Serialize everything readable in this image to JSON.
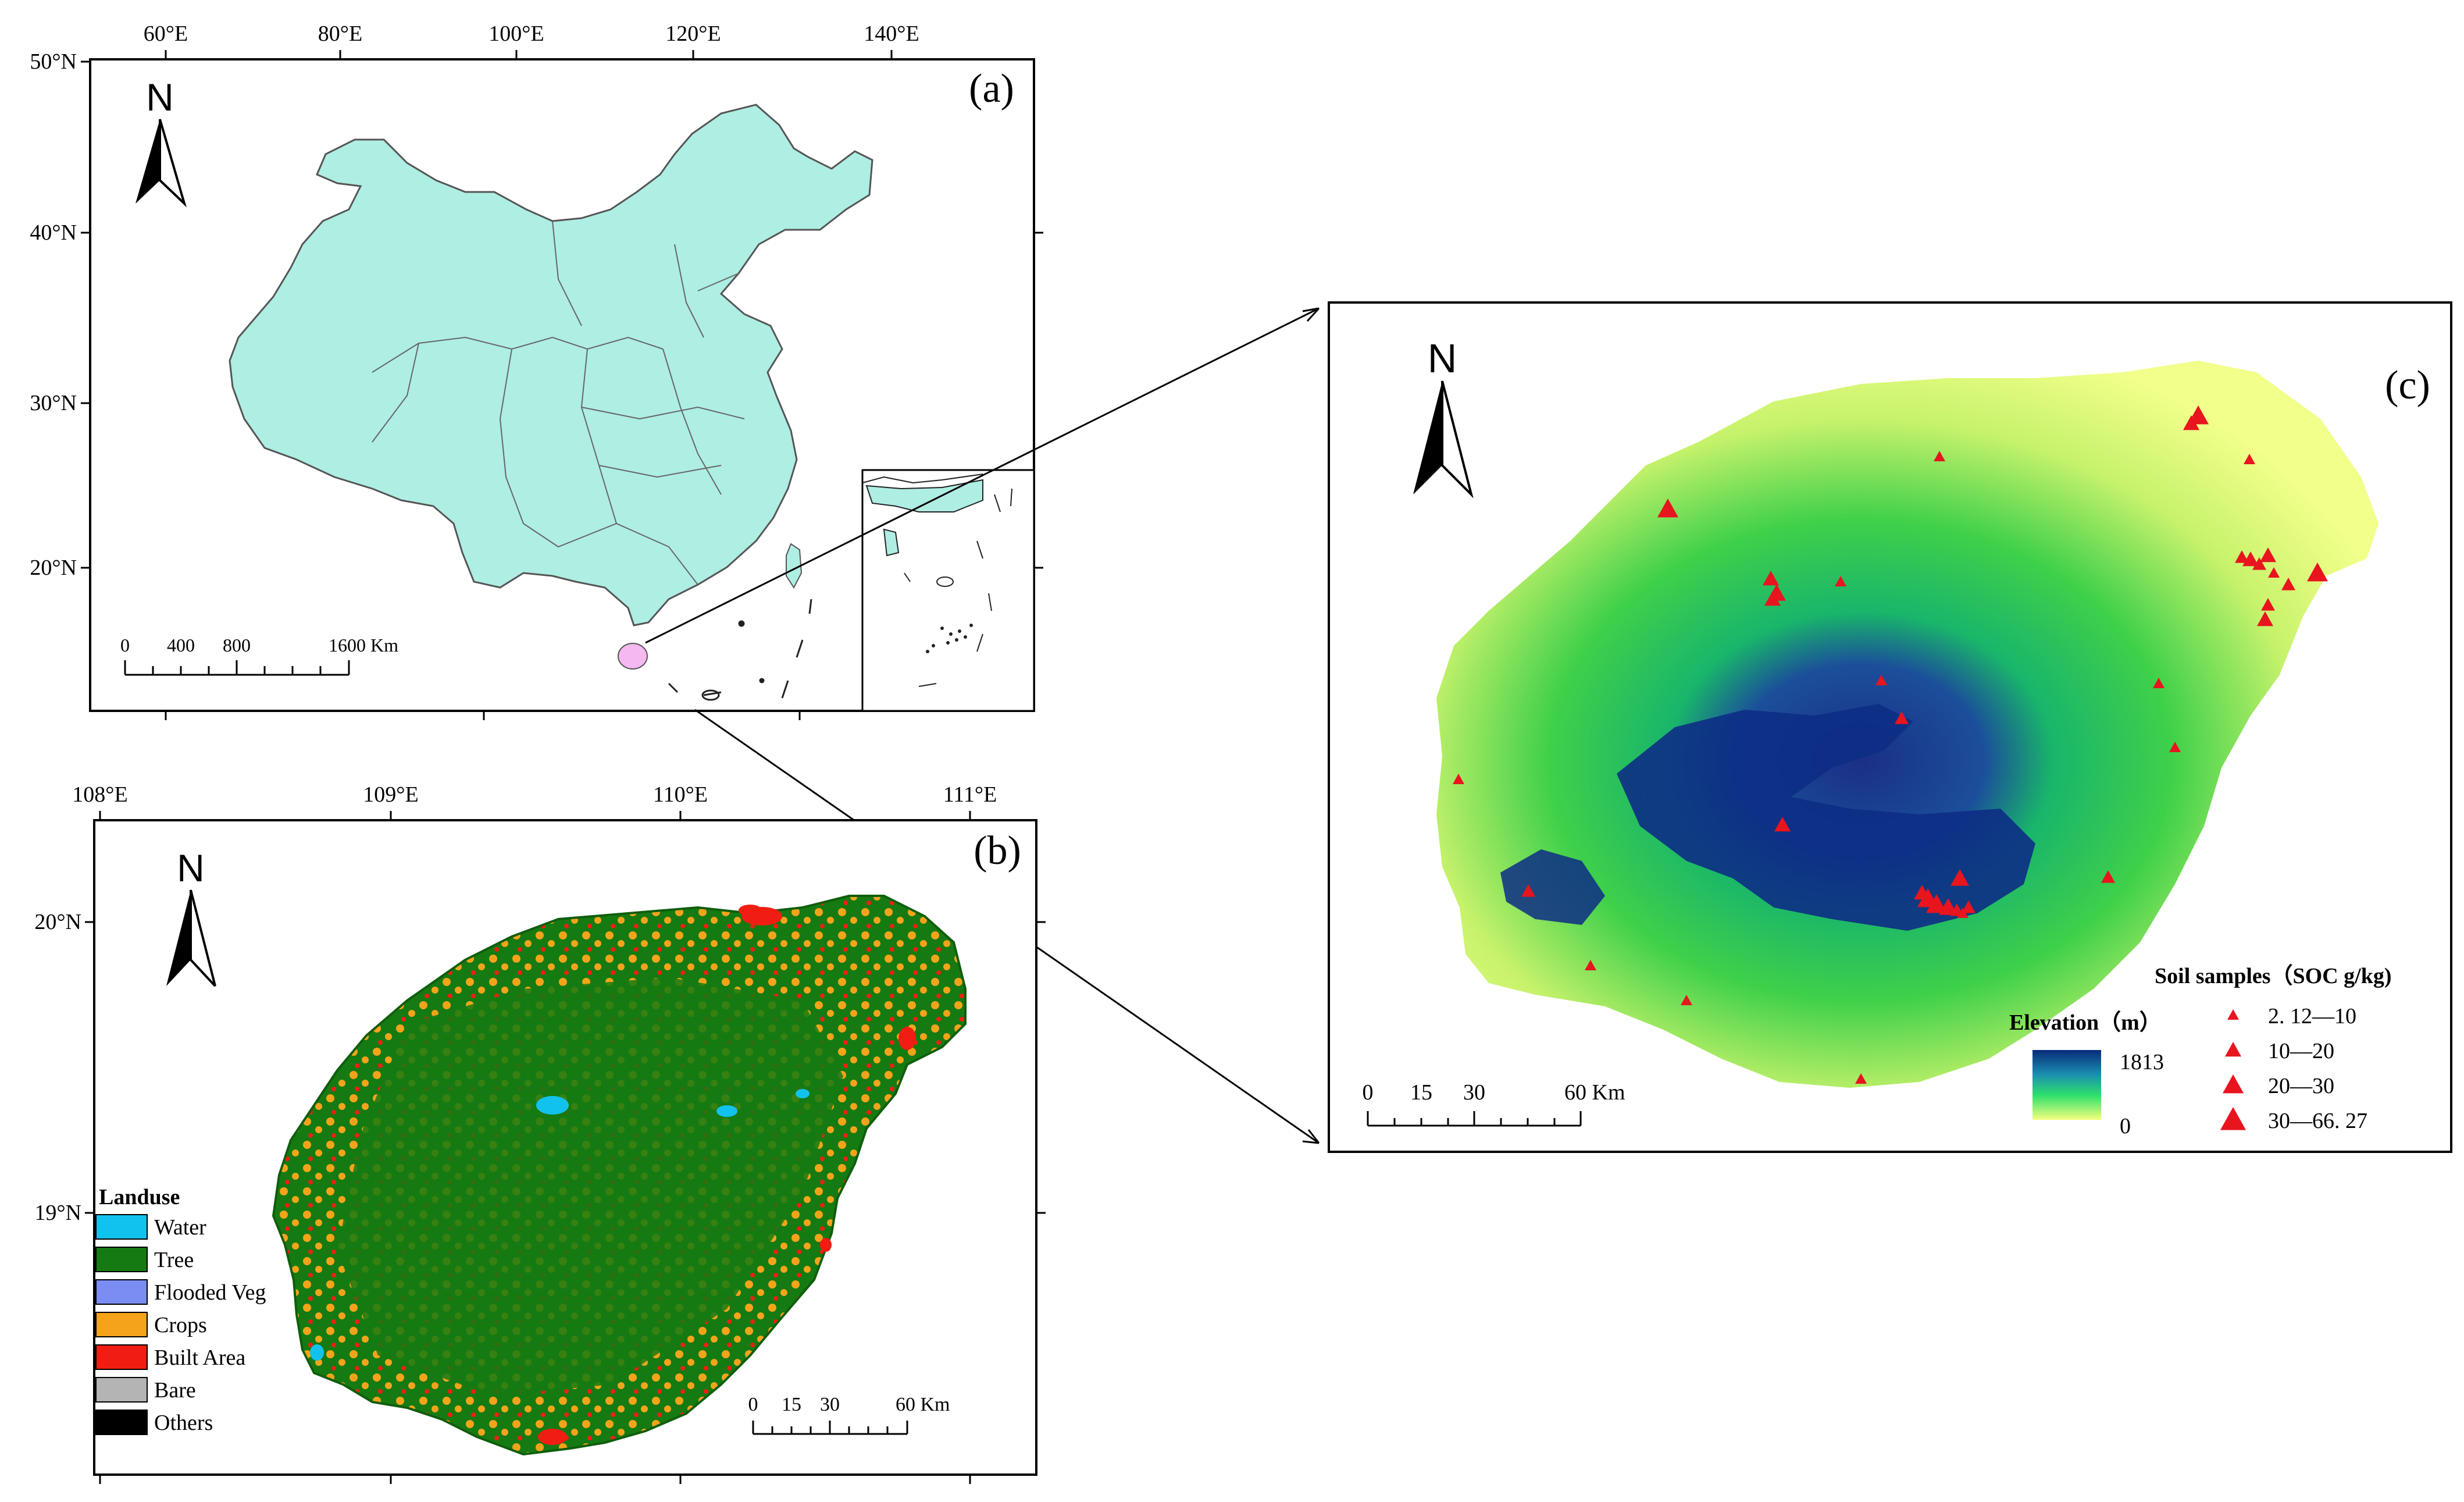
{
  "panel_a": {
    "label": "(a)",
    "north": "N",
    "lon_ticks": [
      "60°E",
      "80°E",
      "100°E",
      "120°E",
      "140°E"
    ],
    "lat_ticks": [
      "50°N",
      "40°N",
      "30°N",
      "20°N"
    ],
    "scale": {
      "labels": [
        "0",
        "400",
        "800",
        "1600 Km"
      ]
    },
    "colors": {
      "land": "#aeeee3",
      "highlight": "#f5b8f0"
    }
  },
  "panel_b": {
    "label": "(b)",
    "north": "N",
    "lon_ticks": [
      "108°E",
      "109°E",
      "110°E",
      "111°E"
    ],
    "lat_ticks": [
      "20°N",
      "19°N"
    ],
    "scale": {
      "labels": [
        "0",
        "15",
        "30",
        "60 Km"
      ]
    },
    "legend": {
      "title": "Landuse",
      "items": [
        {
          "label": "Water",
          "color": "#12c2ee"
        },
        {
          "label": "Tree",
          "color": "#157a12"
        },
        {
          "label": "Flooded Veg",
          "color": "#7b8df2"
        },
        {
          "label": "Crops",
          "color": "#f5a31a"
        },
        {
          "label": "Built Area",
          "color": "#f21d12"
        },
        {
          "label": "Bare",
          "color": "#b4b4b4"
        },
        {
          "label": "Others",
          "color": "#000000"
        }
      ]
    }
  },
  "panel_c": {
    "label": "(c)",
    "north": "N",
    "scale": {
      "labels": [
        "0",
        "15",
        "30",
        "60 Km"
      ]
    },
    "elevation": {
      "title": "Elevation（m）",
      "max": "1813",
      "min": "0"
    },
    "samples": {
      "title": "Soil samples（SOC g/kg)",
      "items": [
        "2. 12—10",
        "10—20",
        "20—30",
        "30—66. 27"
      ],
      "color": "#e8141e"
    }
  }
}
